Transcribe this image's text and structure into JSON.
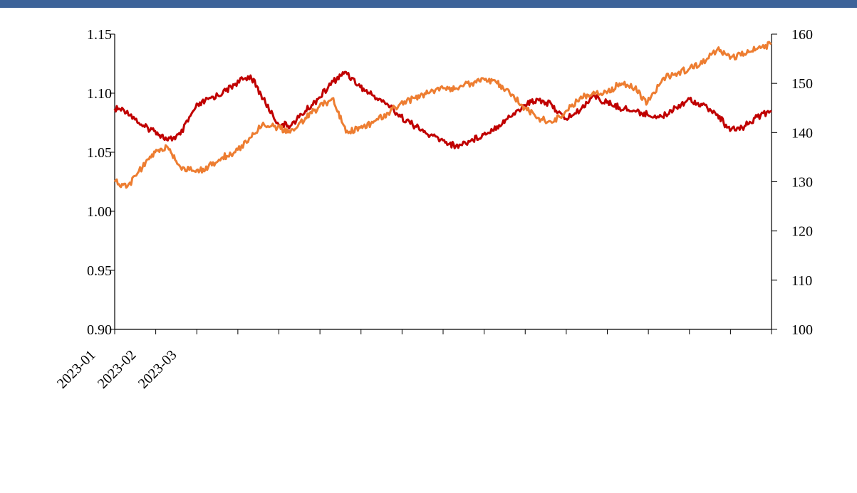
{
  "header": {
    "bar_color": "#3d6399"
  },
  "chart_data": {
    "type": "line",
    "x_tick_labels": [
      "2023-01",
      "2023-02",
      "2023-03"
    ],
    "xlim": [
      "2023-01-01",
      "2024-12-31"
    ],
    "y_left": {
      "lim": [
        0.9,
        1.15
      ],
      "ticks": [
        "0.90",
        "0.95",
        "1.00",
        "1.05",
        "1.10",
        "1.15"
      ]
    },
    "y_right": {
      "lim": [
        100,
        160
      ],
      "ticks": [
        "100",
        "110",
        "120",
        "130",
        "140",
        "150",
        "160"
      ]
    },
    "grid": false,
    "legend": "none",
    "series": [
      {
        "axis": "left",
        "color": "#c00000",
        "points": [
          [
            "2023-01-01",
            1.087
          ],
          [
            "2023-01-15",
            1.085
          ],
          [
            "2023-02-01",
            1.072
          ],
          [
            "2023-02-15",
            1.068
          ],
          [
            "2023-03-01",
            1.06
          ],
          [
            "2023-03-15",
            1.065
          ],
          [
            "2023-04-01",
            1.088
          ],
          [
            "2023-04-15",
            1.095
          ],
          [
            "2023-05-01",
            1.1
          ],
          [
            "2023-05-15",
            1.108
          ],
          [
            "2023-06-01",
            1.115
          ],
          [
            "2023-06-15",
            1.095
          ],
          [
            "2023-07-01",
            1.075
          ],
          [
            "2023-07-15",
            1.072
          ],
          [
            "2023-08-01",
            1.085
          ],
          [
            "2023-08-15",
            1.095
          ],
          [
            "2023-09-01",
            1.11
          ],
          [
            "2023-09-15",
            1.118
          ],
          [
            "2023-10-01",
            1.105
          ],
          [
            "2023-10-15",
            1.098
          ],
          [
            "2023-11-01",
            1.09
          ],
          [
            "2023-11-15",
            1.08
          ],
          [
            "2023-12-01",
            1.072
          ],
          [
            "2023-12-15",
            1.065
          ],
          [
            "2024-01-01",
            1.06
          ],
          [
            "2024-01-15",
            1.055
          ],
          [
            "2024-02-01",
            1.06
          ],
          [
            "2024-02-15",
            1.065
          ],
          [
            "2024-03-01",
            1.072
          ],
          [
            "2024-03-15",
            1.08
          ],
          [
            "2024-04-01",
            1.09
          ],
          [
            "2024-04-15",
            1.095
          ],
          [
            "2024-05-01",
            1.09
          ],
          [
            "2024-05-15",
            1.078
          ],
          [
            "2024-06-01",
            1.085
          ],
          [
            "2024-06-15",
            1.098
          ],
          [
            "2024-07-01",
            1.092
          ],
          [
            "2024-07-15",
            1.088
          ],
          [
            "2024-08-01",
            1.085
          ],
          [
            "2024-08-15",
            1.082
          ],
          [
            "2024-09-01",
            1.08
          ],
          [
            "2024-09-15",
            1.088
          ],
          [
            "2024-10-01",
            1.095
          ],
          [
            "2024-10-15",
            1.09
          ],
          [
            "2024-11-01",
            1.082
          ],
          [
            "2024-11-15",
            1.068
          ],
          [
            "2024-12-01",
            1.072
          ],
          [
            "2024-12-15",
            1.08
          ],
          [
            "2024-12-31",
            1.085
          ]
        ]
      },
      {
        "axis": "right",
        "color": "#ed7d31",
        "points": [
          [
            "2023-01-01",
            130
          ],
          [
            "2023-01-15",
            129
          ],
          [
            "2023-02-01",
            133
          ],
          [
            "2023-02-15",
            136
          ],
          [
            "2023-03-01",
            137
          ],
          [
            "2023-03-15",
            133
          ],
          [
            "2023-04-01",
            132
          ],
          [
            "2023-04-15",
            133
          ],
          [
            "2023-05-01",
            135
          ],
          [
            "2023-05-15",
            136
          ],
          [
            "2023-06-01",
            139
          ],
          [
            "2023-06-15",
            142
          ],
          [
            "2023-07-01",
            141
          ],
          [
            "2023-07-15",
            140
          ],
          [
            "2023-08-01",
            143
          ],
          [
            "2023-08-15",
            145
          ],
          [
            "2023-09-01",
            147
          ],
          [
            "2023-09-15",
            140
          ],
          [
            "2023-10-01",
            141
          ],
          [
            "2023-10-15",
            142
          ],
          [
            "2023-11-01",
            144
          ],
          [
            "2023-11-15",
            146
          ],
          [
            "2023-12-01",
            147
          ],
          [
            "2023-12-15",
            148
          ],
          [
            "2024-01-01",
            149
          ],
          [
            "2024-01-15",
            149
          ],
          [
            "2024-02-01",
            150
          ],
          [
            "2024-02-15",
            151
          ],
          [
            "2024-03-01",
            150
          ],
          [
            "2024-03-15",
            148
          ],
          [
            "2024-04-01",
            145
          ],
          [
            "2024-04-15",
            143
          ],
          [
            "2024-05-01",
            142
          ],
          [
            "2024-05-15",
            144
          ],
          [
            "2024-06-01",
            147
          ],
          [
            "2024-06-15",
            148
          ],
          [
            "2024-07-01",
            148
          ],
          [
            "2024-07-15",
            150
          ],
          [
            "2024-08-01",
            149
          ],
          [
            "2024-08-15",
            146
          ],
          [
            "2024-09-01",
            151
          ],
          [
            "2024-09-15",
            152
          ],
          [
            "2024-10-01",
            153
          ],
          [
            "2024-10-15",
            154
          ],
          [
            "2024-11-01",
            157
          ],
          [
            "2024-11-15",
            155
          ],
          [
            "2024-12-01",
            156
          ],
          [
            "2024-12-15",
            157
          ],
          [
            "2024-12-31",
            158
          ]
        ]
      }
    ]
  }
}
